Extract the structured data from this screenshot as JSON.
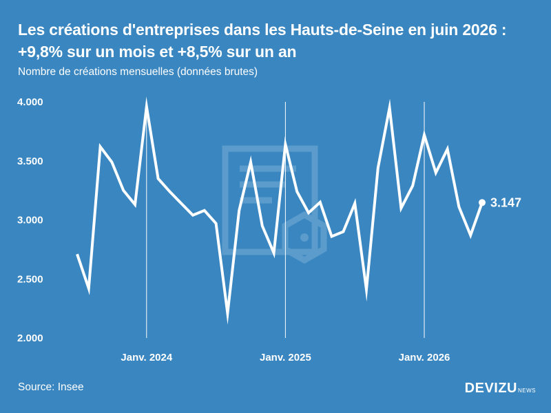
{
  "header": {
    "title": "Les créations d'entreprises dans les Hauts-de-Seine en juin 2026 : +9,8% sur un mois et +8,5% sur un an",
    "subtitle": "Nombre de créations mensuelles (données brutes)"
  },
  "footer": {
    "source": "Source: Insee",
    "brand": "DEVIZU",
    "brand_suffix": "NEWS"
  },
  "colors": {
    "background": "#3a86c0",
    "line": "#ffffff",
    "watermark": "#5f9fcf"
  },
  "chart_data": {
    "type": "line",
    "title": "",
    "xlabel": "",
    "ylabel": "",
    "ylim": [
      2000,
      4000
    ],
    "yticks": [
      2000,
      2500,
      3000,
      3500,
      4000
    ],
    "ytick_labels": [
      "2.000",
      "2.500",
      "3.000",
      "3.500",
      "4.000"
    ],
    "xtick_labels": [
      {
        "label": "Janv. 2024",
        "index": 6
      },
      {
        "label": "Janv. 2025",
        "index": 18
      },
      {
        "label": "Janv. 2026",
        "index": 30
      }
    ],
    "x": [
      "2023-07",
      "2023-08",
      "2023-09",
      "2023-10",
      "2023-11",
      "2023-12",
      "2024-01",
      "2024-02",
      "2024-03",
      "2024-04",
      "2024-05",
      "2024-06",
      "2024-07",
      "2024-08",
      "2024-09",
      "2024-10",
      "2024-11",
      "2024-12",
      "2025-01",
      "2025-02",
      "2025-03",
      "2025-04",
      "2025-05",
      "2025-06",
      "2025-07",
      "2025-08",
      "2025-09",
      "2025-10",
      "2025-11",
      "2025-12",
      "2026-01",
      "2026-02",
      "2026-03",
      "2026-04",
      "2026-05",
      "2026-06"
    ],
    "series": [
      {
        "values": [
          2710,
          2420,
          3620,
          3490,
          3250,
          3130,
          3960,
          3350,
          3240,
          3140,
          3040,
          3080,
          2970,
          2210,
          3080,
          3490,
          2950,
          2720,
          3640,
          3240,
          3060,
          3150,
          2860,
          2900,
          3140,
          2410,
          3440,
          3950,
          3100,
          3290,
          3720,
          3400,
          3600,
          3110,
          2870,
          3147
        ]
      }
    ],
    "last_value_label": "3.147",
    "grid": false,
    "legend": "none"
  }
}
